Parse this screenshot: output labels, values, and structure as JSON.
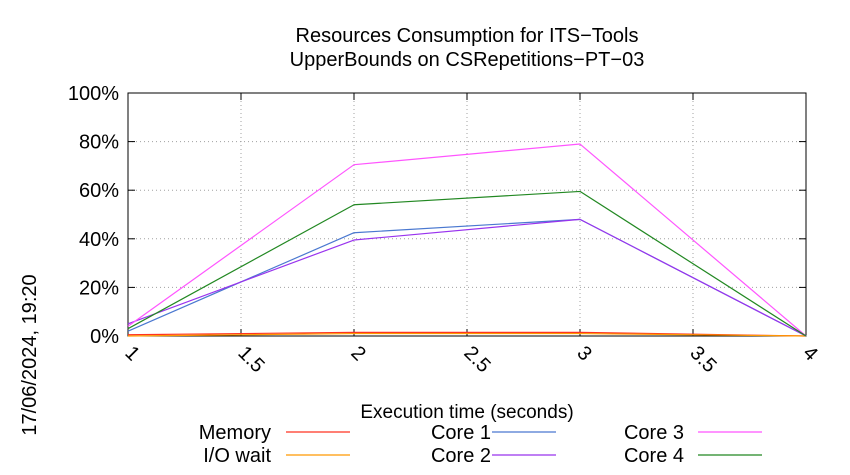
{
  "chart_data": {
    "type": "line",
    "title": "Resources Consumption for ITS−Tools",
    "subtitle": "UpperBounds on CSRepetitions−PT−03",
    "xlabel": "Execution time (seconds)",
    "ylabel": "",
    "side_label": "17/06/2024, 19:20",
    "xlim": [
      1,
      4
    ],
    "ylim": [
      0,
      100
    ],
    "x_ticks": [
      "1",
      "1.5",
      "2",
      "2.5",
      "3",
      "3.5",
      "4"
    ],
    "y_ticks": [
      "0%",
      "20%",
      "40%",
      "60%",
      "80%",
      "100%"
    ],
    "grid": true,
    "legend_position": "bottom",
    "x": [
      1,
      2,
      3,
      4
    ],
    "series": [
      {
        "name": "Memory",
        "color": "#ff3322",
        "values": [
          0.5,
          1.5,
          1.5,
          0
        ]
      },
      {
        "name": "I/O wait",
        "color": "#ff9900",
        "values": [
          0,
          1,
          1,
          0
        ]
      },
      {
        "name": "Core 1",
        "color": "#4a78d0",
        "values": [
          2,
          42.5,
          48,
          0
        ]
      },
      {
        "name": "Core 2",
        "color": "#9933ee",
        "values": [
          5,
          39.5,
          48,
          0
        ]
      },
      {
        "name": "Core 3",
        "color": "#ff55ff",
        "values": [
          4,
          70.5,
          79,
          0
        ]
      },
      {
        "name": "Core 4",
        "color": "#228822",
        "values": [
          3,
          54,
          59.5,
          0
        ]
      }
    ]
  }
}
